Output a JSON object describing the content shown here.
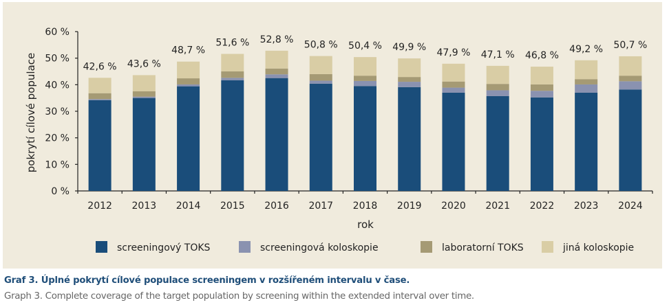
{
  "chart_data": {
    "type": "bar",
    "stacked": true,
    "title": "",
    "xlabel": "rok",
    "ylabel": "pokrytí cílové populace",
    "ylim": [
      0,
      60
    ],
    "yticks": [
      "0 %",
      "10 %",
      "20 %",
      "30 %",
      "40 %",
      "50 %",
      "60 %"
    ],
    "ytick_values": [
      0,
      10,
      20,
      30,
      40,
      50,
      60
    ],
    "grid": false,
    "legend_position": "bottom",
    "categories": [
      "2012",
      "2013",
      "2014",
      "2015",
      "2016",
      "2017",
      "2018",
      "2019",
      "2020",
      "2021",
      "2022",
      "2023",
      "2024"
    ],
    "series": [
      {
        "name": "screeningový TOKS",
        "color": "#1a4d7a",
        "values": [
          34.2,
          35.0,
          39.4,
          41.7,
          42.5,
          40.4,
          39.5,
          39.1,
          37.0,
          35.7,
          35.2,
          37.0,
          38.2
        ]
      },
      {
        "name": "screeningová koloskopie",
        "color": "#8a92b0",
        "values": [
          0.4,
          0.5,
          0.7,
          0.9,
          1.4,
          1.1,
          1.9,
          2.0,
          1.9,
          2.2,
          2.5,
          3.1,
          3.1
        ]
      },
      {
        "name": "laboratorní TOKS",
        "color": "#a59a74",
        "values": [
          2.2,
          2.0,
          2.3,
          2.4,
          2.2,
          2.5,
          2.0,
          1.8,
          2.3,
          2.4,
          2.4,
          2.0,
          2.1
        ]
      },
      {
        "name": "jiná koloskopie",
        "color": "#d9cda5",
        "values": [
          5.8,
          6.1,
          6.3,
          6.6,
          6.7,
          6.8,
          7.0,
          7.0,
          6.7,
          6.8,
          6.7,
          7.1,
          7.3
        ]
      }
    ],
    "totals": [
      42.6,
      43.6,
      48.7,
      51.6,
      52.8,
      50.8,
      50.4,
      49.9,
      47.9,
      47.1,
      46.8,
      49.2,
      50.7
    ],
    "total_labels": [
      "42,6 %",
      "43,6 %",
      "48,7 %",
      "51,6 %",
      "52,8 %",
      "50,8 %",
      "50,4 %",
      "49,9 %",
      "47,9 %",
      "47,1 %",
      "46,8 %",
      "49,2 %",
      "50,7 %"
    ]
  },
  "caption": {
    "czech": "Graf 3. Úplné pokrytí cílové  populace screeningem v rozšířeném intervalu v čase.",
    "english": "Graph 3. Complete coverage of the target population by screening within the extended interval over time."
  }
}
